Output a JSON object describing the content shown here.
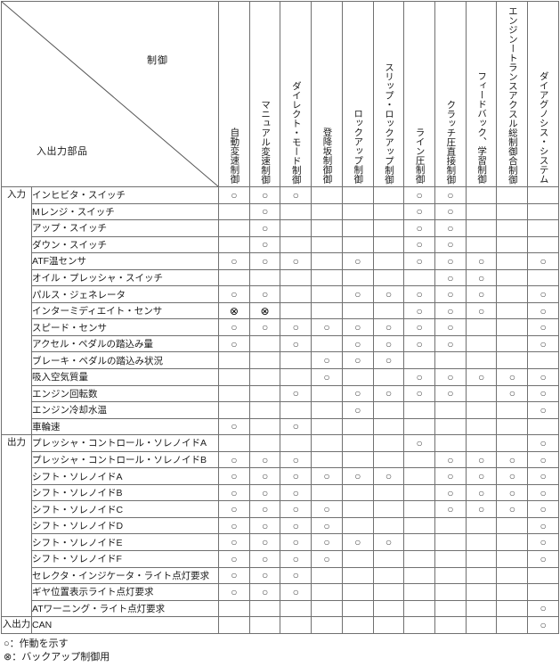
{
  "corner": {
    "control_label": "制御",
    "parts_label": "入出力部品"
  },
  "columns": [
    "自動変速制御",
    "マニュアル変速制御",
    "ダイレクト・モード制御",
    "登降坂制御御",
    "ロックアップ制御",
    "スリップ・ロックアップ制御",
    "ライン圧制御",
    "クラッチ圧直接制御",
    "フィードバック、学習制御",
    "エンジンートランスアクスル総制御合制御",
    "ダイアグノシス・システム"
  ],
  "symbols": {
    "o": "○",
    "x": "⊗"
  },
  "row_groups": [
    {
      "label": "入力",
      "rows": [
        {
          "label": "インヒビタ・スイッチ",
          "marks": [
            "o",
            "o",
            "o",
            "",
            "",
            "",
            "o",
            "o",
            "",
            "",
            ""
          ]
        },
        {
          "label": "Mレンジ・スイッチ",
          "marks": [
            "",
            "o",
            "",
            "",
            "",
            "",
            "o",
            "o",
            "",
            "",
            ""
          ]
        },
        {
          "label": "アップ・スイッチ",
          "marks": [
            "",
            "o",
            "",
            "",
            "",
            "",
            "o",
            "o",
            "",
            "",
            ""
          ]
        },
        {
          "label": "ダウン・スイッチ",
          "marks": [
            "",
            "o",
            "",
            "",
            "",
            "",
            "o",
            "o",
            "",
            "",
            ""
          ]
        },
        {
          "label": "ATF温センサ",
          "marks": [
            "o",
            "o",
            "o",
            "",
            "o",
            "",
            "o",
            "o",
            "o",
            "",
            "o"
          ]
        },
        {
          "label": "オイル・プレッシャ・スイッチ",
          "marks": [
            "",
            "",
            "",
            "",
            "",
            "",
            "",
            "o",
            "o",
            "",
            ""
          ]
        },
        {
          "label": "パルス・ジェネレータ",
          "marks": [
            "o",
            "o",
            "",
            "",
            "o",
            "o",
            "o",
            "o",
            "o",
            "",
            "o"
          ]
        },
        {
          "label": "インターミディエイト・センサ",
          "marks": [
            "x",
            "x",
            "",
            "",
            "",
            "",
            "o",
            "o",
            "o",
            "",
            "o"
          ]
        },
        {
          "label": "スピード・センサ",
          "marks": [
            "o",
            "o",
            "o",
            "o",
            "o",
            "o",
            "o",
            "o",
            "",
            "",
            "o"
          ]
        },
        {
          "label": "アクセル・ペダルの踏込み量",
          "marks": [
            "o",
            "",
            "o",
            "",
            "o",
            "o",
            "o",
            "o",
            "",
            "",
            "o"
          ]
        },
        {
          "label": "ブレーキ・ペダルの踏込み状況",
          "marks": [
            "",
            "",
            "",
            "o",
            "o",
            "o",
            "",
            "",
            "",
            "",
            ""
          ]
        },
        {
          "label": "吸入空気質量",
          "marks": [
            "",
            "",
            "",
            "o",
            "",
            "",
            "o",
            "o",
            "o",
            "o",
            "o"
          ]
        },
        {
          "label": "エンジン回転数",
          "marks": [
            "",
            "",
            "o",
            "",
            "o",
            "o",
            "o",
            "o",
            "",
            "o",
            "o"
          ]
        },
        {
          "label": "エンジン冷却水温",
          "marks": [
            "",
            "",
            "",
            "",
            "o",
            "",
            "",
            "",
            "",
            "",
            "o"
          ]
        },
        {
          "label": "車輪速",
          "marks": [
            "o",
            "",
            "o",
            "",
            "",
            "",
            "",
            "",
            "",
            "",
            ""
          ]
        }
      ]
    },
    {
      "label": "出力",
      "rows": [
        {
          "label": "プレッシャ・コントロール・ソレノイドA",
          "marks": [
            "",
            "",
            "",
            "",
            "",
            "",
            "o",
            "",
            "",
            "",
            "o"
          ]
        },
        {
          "label": "プレッシャ・コントロール・ソレノイドB",
          "marks": [
            "o",
            "o",
            "o",
            "",
            "",
            "",
            "",
            "o",
            "o",
            "o",
            "o"
          ]
        },
        {
          "label": "シフト・ソレノイドA",
          "marks": [
            "o",
            "o",
            "o",
            "o",
            "o",
            "o",
            "",
            "o",
            "o",
            "o",
            "o"
          ]
        },
        {
          "label": "シフト・ソレノイドB",
          "marks": [
            "o",
            "o",
            "o",
            "",
            "",
            "",
            "",
            "o",
            "o",
            "o",
            "o"
          ]
        },
        {
          "label": "シフト・ソレノイドC",
          "marks": [
            "o",
            "o",
            "o",
            "o",
            "",
            "",
            "",
            "o",
            "o",
            "o",
            "o"
          ]
        },
        {
          "label": "シフト・ソレノイドD",
          "marks": [
            "o",
            "o",
            "o",
            "o",
            "",
            "",
            "",
            "",
            "",
            "",
            "o"
          ]
        },
        {
          "label": "シフト・ソレノイドE",
          "marks": [
            "o",
            "o",
            "o",
            "o",
            "o",
            "o",
            "",
            "",
            "",
            "",
            "o"
          ]
        },
        {
          "label": "シフト・ソレノイドF",
          "marks": [
            "o",
            "o",
            "o",
            "o",
            "",
            "",
            "",
            "",
            "",
            "",
            "o"
          ]
        },
        {
          "label": "セレクタ・インジケータ・ライト点灯要求",
          "marks": [
            "o",
            "o",
            "o",
            "",
            "",
            "",
            "",
            "",
            "",
            "",
            ""
          ]
        },
        {
          "label": "ギヤ位置表示ライト点灯要求",
          "marks": [
            "o",
            "o",
            "o",
            "",
            "",
            "",
            "",
            "",
            "",
            "",
            ""
          ]
        },
        {
          "label": "ATワーニング・ライト点灯要求",
          "marks": [
            "",
            "",
            "",
            "",
            "",
            "",
            "",
            "",
            "",
            "",
            "o"
          ]
        }
      ]
    },
    {
      "label": "入出力",
      "rows": [
        {
          "label": "CAN",
          "marks": [
            "",
            "",
            "",
            "",
            "",
            "",
            "",
            "",
            "",
            "",
            "o"
          ]
        }
      ]
    }
  ],
  "legend": {
    "items": [
      {
        "symbol": "○",
        "text": "：作動を示す"
      },
      {
        "symbol": "⊗",
        "text": "：バックアップ制御用"
      }
    ]
  }
}
